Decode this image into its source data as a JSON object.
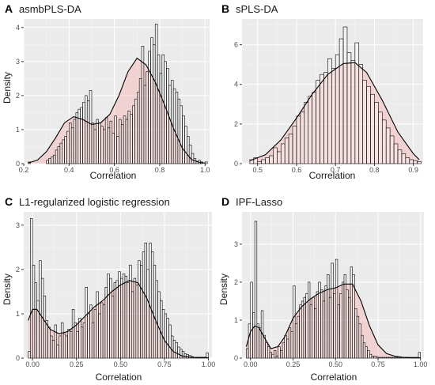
{
  "chart_data": [
    {
      "panel": "A",
      "title": "asmbPLS-DA",
      "type": "bar",
      "xlabel": "Correlation",
      "ylabel": "Density",
      "xlim": [
        0.2,
        1.02
      ],
      "ylim": [
        0,
        4.25
      ],
      "xticks": [
        0.2,
        0.4,
        0.6,
        0.8,
        1.0
      ],
      "xtick_labels": [
        "0.2",
        "0.4",
        "0.6",
        "0.8",
        "1.0"
      ],
      "yticks": [
        0,
        1,
        2,
        3,
        4
      ],
      "ytick_labels": [
        "0",
        "1",
        "2",
        "3",
        "4"
      ],
      "bin_width": 0.01,
      "bin_start": 0.22,
      "hist_values": [
        0.05,
        0,
        0,
        0,
        0,
        0,
        0,
        0,
        0.1,
        0.15,
        0.2,
        0.25,
        0.4,
        0.5,
        0.6,
        0.7,
        0.8,
        0.95,
        1.2,
        1.05,
        1.3,
        1.5,
        1.6,
        1.65,
        1.8,
        2.0,
        1.85,
        2.15,
        1.2,
        1.0,
        1.3,
        1.2,
        1.1,
        1.0,
        1.35,
        1.05,
        1.25,
        0.9,
        1.4,
        0.8,
        1.3,
        1.15,
        1.4,
        1.3,
        1.55,
        1.45,
        1.7,
        1.9,
        2.1,
        2.5,
        3.45,
        2.3,
        2.7,
        3.3,
        3.7,
        3.5,
        4.1,
        3.2,
        2.65,
        3.2,
        3.0,
        2.8,
        2.3,
        2.45,
        2.2,
        2.1,
        1.9,
        1.7,
        1.4,
        1.1,
        0.8,
        0.55,
        0.3,
        0.15,
        0.05,
        0.1,
        0.05,
        0,
        0.05
      ],
      "density_x": [
        0.22,
        0.26,
        0.3,
        0.34,
        0.38,
        0.42,
        0.46,
        0.5,
        0.54,
        0.58,
        0.62,
        0.66,
        0.7,
        0.74,
        0.78,
        0.82,
        0.86,
        0.9,
        0.94,
        0.98,
        1.0
      ],
      "density_y": [
        0.02,
        0.1,
        0.35,
        0.75,
        1.2,
        1.38,
        1.3,
        1.15,
        1.2,
        1.45,
        2.0,
        2.7,
        3.1,
        2.9,
        2.4,
        1.75,
        1.05,
        0.45,
        0.12,
        0.03,
        0.02
      ]
    },
    {
      "panel": "B",
      "title": "sPLS-DA",
      "type": "bar",
      "xlabel": "Correlation",
      "ylabel": "",
      "xlim": [
        0.46,
        0.925
      ],
      "ylim": [
        0,
        7.3
      ],
      "xticks": [
        0.5,
        0.6,
        0.7,
        0.8,
        0.9
      ],
      "xtick_labels": [
        "0.5",
        "0.6",
        "0.7",
        "0.8",
        "0.9"
      ],
      "yticks": [
        0,
        2,
        4,
        6
      ],
      "ytick_labels": [
        "0",
        "2",
        "4",
        "6"
      ],
      "bin_width": 0.01,
      "bin_start": 0.48,
      "hist_values": [
        0.2,
        0.3,
        0.1,
        0.2,
        0.3,
        0.4,
        0.8,
        0.6,
        1.0,
        1.3,
        1.5,
        1.9,
        2.4,
        2.6,
        3.1,
        3.4,
        3.6,
        4.2,
        4.5,
        4.6,
        5.3,
        4.8,
        5.5,
        6.3,
        6.9,
        5.6,
        5.2,
        6.1,
        5.0,
        4.2,
        3.9,
        3.5,
        3.1,
        2.6,
        2.2,
        1.8,
        1.4,
        1.0,
        0.7,
        0.5,
        0.3,
        0.2,
        0.15,
        0.1
      ],
      "density_x": [
        0.48,
        0.52,
        0.56,
        0.6,
        0.64,
        0.68,
        0.72,
        0.75,
        0.78,
        0.82,
        0.86,
        0.9,
        0.915
      ],
      "density_y": [
        0.15,
        0.45,
        1.2,
        2.3,
        3.5,
        4.5,
        5.05,
        5.1,
        4.6,
        3.2,
        1.6,
        0.5,
        0.2
      ]
    },
    {
      "panel": "C",
      "title": "L1-regularized logistic regression",
      "type": "bar",
      "xlabel": "Correlation",
      "ylabel": "Density",
      "xlim": [
        -0.05,
        1.02
      ],
      "ylim": [
        0,
        3.3
      ],
      "xticks": [
        0.0,
        0.25,
        0.5,
        0.75,
        1.0
      ],
      "xtick_labels": [
        "0.00",
        "0.25",
        "0.50",
        "0.75",
        "1.00"
      ],
      "yticks": [
        0,
        1,
        2,
        3
      ],
      "ytick_labels": [
        "0",
        "1",
        "2",
        "3"
      ],
      "bin_width": 0.0125,
      "bin_start": -0.025,
      "hist_values": [
        0.15,
        3.15,
        2.1,
        1.7,
        1.3,
        2.2,
        1.8,
        1.4,
        0.85,
        0.7,
        0.5,
        0.4,
        0.75,
        0.3,
        0.5,
        0.8,
        0.55,
        0.5,
        0.65,
        0.6,
        1.1,
        0.8,
        0.6,
        0.9,
        0.7,
        0.8,
        1.6,
        1.0,
        1.2,
        0.8,
        1.1,
        1.5,
        1.0,
        1.25,
        1.2,
        1.6,
        1.9,
        1.8,
        1.4,
        1.7,
        1.75,
        1.95,
        1.8,
        1.9,
        1.85,
        1.7,
        2.1,
        1.5,
        1.8,
        1.65,
        2.2,
        2.1,
        2.4,
        2.6,
        2.0,
        2.6,
        2.4,
        2.1,
        1.75,
        1.5,
        1.3,
        1.1,
        1.0,
        0.9,
        0.75,
        0.5,
        0.4,
        0.35,
        0.25,
        0.2,
        0.15,
        0.1,
        0.08,
        0.06,
        0.04,
        0.02,
        0.02,
        0.02,
        0.02,
        0.02,
        0.02,
        0.12
      ],
      "density_x": [
        -0.025,
        0.0,
        0.025,
        0.05,
        0.1,
        0.15,
        0.2,
        0.25,
        0.3,
        0.35,
        0.4,
        0.45,
        0.5,
        0.55,
        0.6,
        0.65,
        0.7,
        0.75,
        0.8,
        0.85,
        0.9,
        0.95,
        1.0
      ],
      "density_y": [
        0.85,
        1.1,
        1.1,
        0.95,
        0.65,
        0.55,
        0.6,
        0.75,
        0.95,
        1.15,
        1.3,
        1.5,
        1.65,
        1.75,
        1.7,
        1.35,
        0.85,
        0.4,
        0.15,
        0.05,
        0.02,
        0.01,
        0.01
      ]
    },
    {
      "panel": "D",
      "title": "IPF-Lasso",
      "type": "bar",
      "xlabel": "Correlation",
      "ylabel": "Density",
      "xlim": [
        -0.05,
        1.02
      ],
      "ylim": [
        0,
        3.85
      ],
      "xticks": [
        0.0,
        0.25,
        0.5,
        0.75,
        1.0
      ],
      "xtick_labels": [
        "0.00",
        "0.25",
        "0.50",
        "0.75",
        "1.00"
      ],
      "yticks": [
        0,
        1,
        2,
        3
      ],
      "ytick_labels": [
        "0",
        "1",
        "2",
        "3"
      ],
      "bin_width": 0.0125,
      "bin_start": -0.025,
      "hist_values": [
        0.25,
        0.9,
        2.0,
        1.2,
        3.6,
        0.9,
        0.8,
        1.25,
        0.6,
        0.4,
        0.3,
        0.15,
        0.1,
        0.2,
        0.05,
        0.3,
        0.2,
        0.4,
        0.6,
        0.5,
        0.8,
        0.7,
        1.9,
        0.9,
        1.1,
        1.4,
        1.5,
        1.6,
        1.7,
        2.0,
        1.4,
        1.6,
        1.3,
        1.75,
        2.0,
        1.8,
        1.5,
        1.9,
        2.2,
        1.6,
        2.5,
        1.7,
        2.6,
        1.4,
        1.7,
        2.0,
        2.2,
        1.8,
        1.6,
        2.4,
        2.2,
        1.3,
        1.1,
        0.9,
        0.6,
        0.4,
        0.3,
        0.2,
        0.1,
        0.05,
        0.05,
        0.03,
        0.02,
        0.02,
        0.02,
        0.02,
        0.02,
        0.02,
        0.02,
        0.02,
        0.02,
        0.02,
        0.02,
        0.02,
        0.02,
        0.02,
        0.02,
        0.02,
        0.02,
        0.02,
        0.02,
        0.15
      ],
      "density_x": [
        -0.025,
        0.0,
        0.025,
        0.05,
        0.08,
        0.12,
        0.16,
        0.2,
        0.25,
        0.3,
        0.35,
        0.4,
        0.45,
        0.5,
        0.55,
        0.6,
        0.65,
        0.7,
        0.75,
        0.8,
        0.85,
        0.9,
        0.95,
        1.0
      ],
      "density_y": [
        0.3,
        0.7,
        0.85,
        0.8,
        0.55,
        0.25,
        0.3,
        0.55,
        1.05,
        1.35,
        1.55,
        1.7,
        1.8,
        1.85,
        1.95,
        1.95,
        1.5,
        0.85,
        0.35,
        0.12,
        0.05,
        0.02,
        0.01,
        0.01
      ]
    }
  ]
}
